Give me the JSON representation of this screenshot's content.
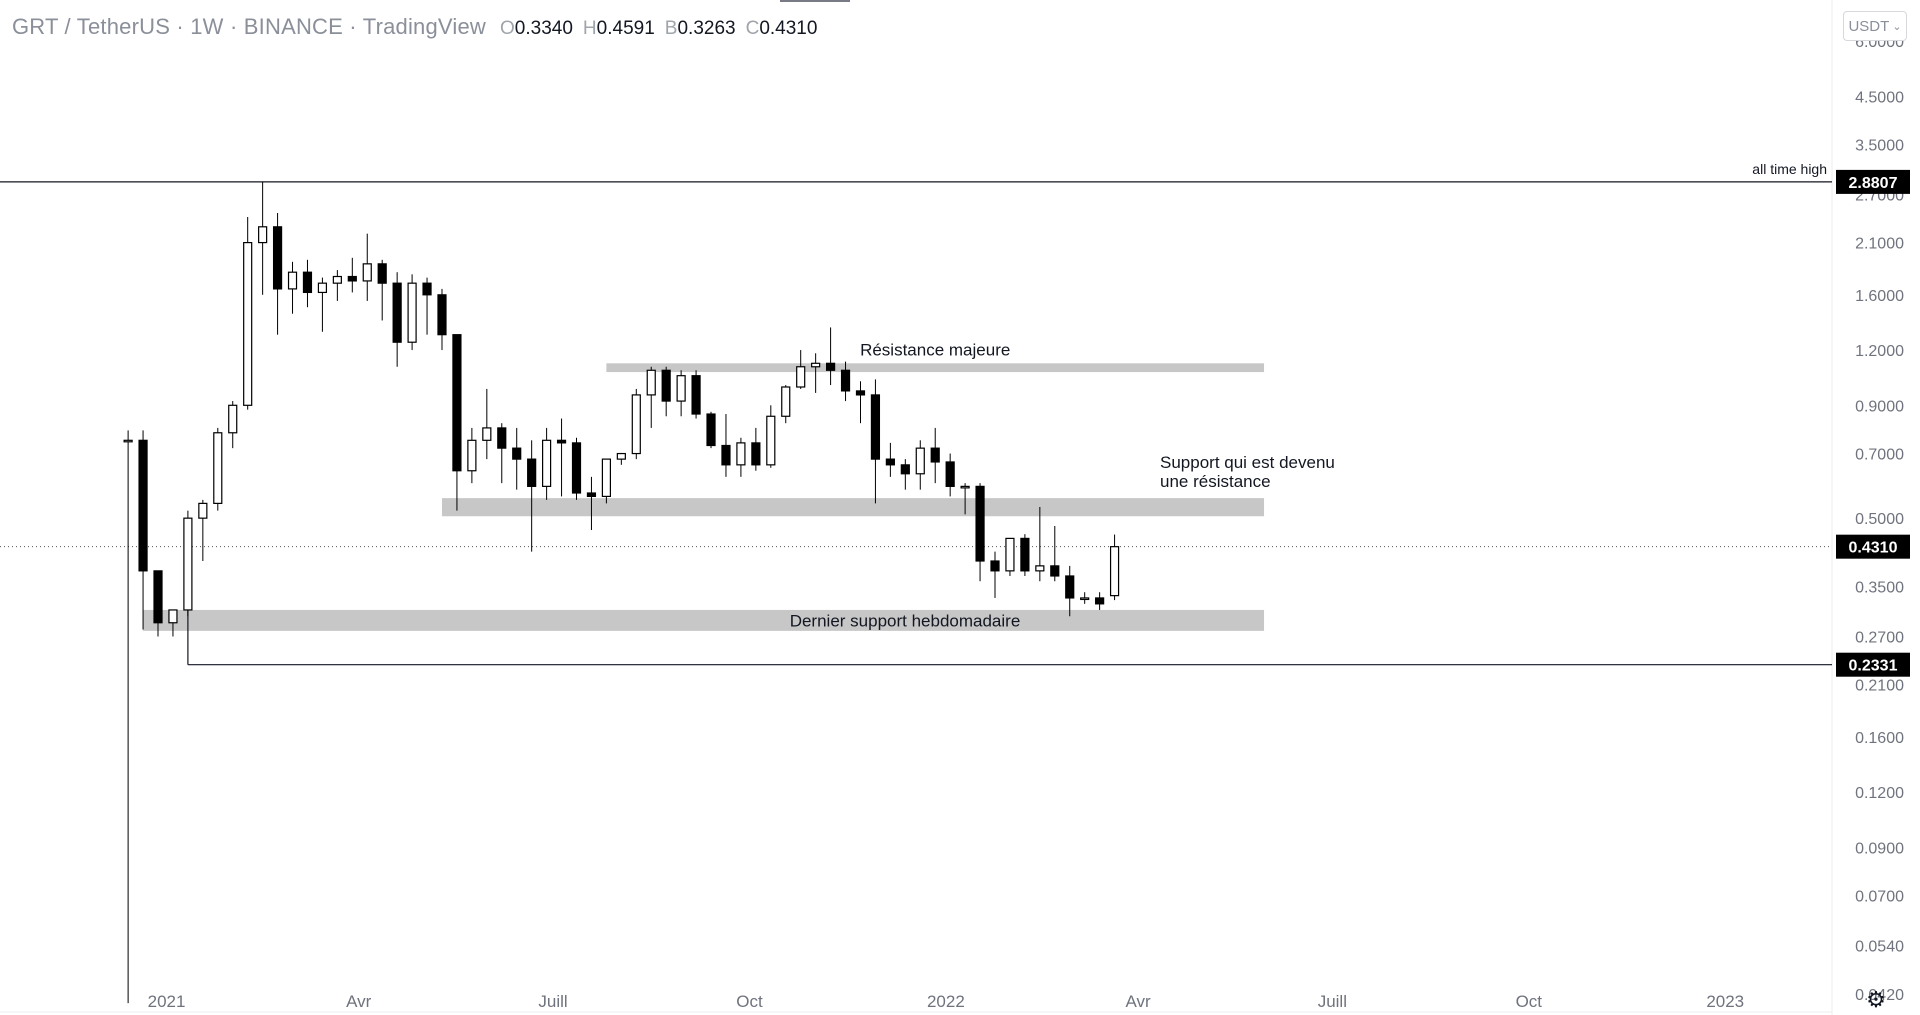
{
  "header": {
    "title": "GRT / TetherUS · 1W · BINANCE · TradingView",
    "ohlc": [
      {
        "key": "O",
        "value": "0.3340"
      },
      {
        "key": "H",
        "value": "0.4591"
      },
      {
        "key": "B",
        "value": "0.3263"
      },
      {
        "key": "C",
        "value": "0.4310"
      }
    ]
  },
  "toolbar": {
    "unit_label": "USDT"
  },
  "icons": {
    "unit_menu": "chevron-down-icon",
    "settings": "gear-icon"
  },
  "colors": {
    "candle": "#000000",
    "zone": "#bdbdbd",
    "price_tag_bg": "#000000",
    "price_tag_text": "#ffffff",
    "axis_text": "#6f737d"
  },
  "chart_data": {
    "type": "candlestick",
    "title": "GRT / TetherUS · 1W · BINANCE · TradingView",
    "y_scale": "log",
    "ylim": [
      0.038,
      7.2
    ],
    "y_ticks": [
      "6.0000",
      "4.5000",
      "3.5000",
      "2.7000",
      "2.1000",
      "1.6000",
      "1.2000",
      "0.9000",
      "0.7000",
      "0.5000",
      "0.3500",
      "0.2700",
      "0.2100",
      "0.1600",
      "0.1200",
      "0.0900",
      "0.0700",
      "0.0540",
      "0.0420"
    ],
    "y_tick_values": [
      6.0,
      4.5,
      3.5,
      2.7,
      2.1,
      1.6,
      1.2,
      0.9,
      0.7,
      0.5,
      0.35,
      0.27,
      0.21,
      0.16,
      0.12,
      0.09,
      0.07,
      0.054,
      0.042
    ],
    "x_range": [
      "2020-10-15",
      "2023-02-20"
    ],
    "x_ticks": [
      {
        "label": "2021",
        "date": "2021-01-01"
      },
      {
        "label": "Avr",
        "date": "2021-04-01"
      },
      {
        "label": "Juill",
        "date": "2021-07-01"
      },
      {
        "label": "Oct",
        "date": "2021-10-01"
      },
      {
        "label": "2022",
        "date": "2022-01-01"
      },
      {
        "label": "Avr",
        "date": "2022-04-01"
      },
      {
        "label": "Juill",
        "date": "2022-07-01"
      },
      {
        "label": "Oct",
        "date": "2022-10-01"
      },
      {
        "label": "2023",
        "date": "2023-01-01"
      }
    ],
    "first_week": "2020-12-14",
    "candles": [
      [
        0.75,
        0.79,
        0.04,
        0.75
      ],
      [
        0.75,
        0.79,
        0.28,
        0.38
      ],
      [
        0.38,
        0.38,
        0.27,
        0.29
      ],
      [
        0.29,
        0.31,
        0.27,
        0.31
      ],
      [
        0.31,
        0.52,
        0.3,
        0.5
      ],
      [
        0.5,
        0.55,
        0.4,
        0.54
      ],
      [
        0.54,
        0.8,
        0.52,
        0.78
      ],
      [
        0.78,
        0.92,
        0.72,
        0.9
      ],
      [
        0.9,
        2.4,
        0.88,
        2.1
      ],
      [
        2.1,
        2.88,
        1.6,
        2.28
      ],
      [
        2.28,
        2.45,
        1.3,
        1.65
      ],
      [
        1.65,
        1.9,
        1.45,
        1.8
      ],
      [
        1.8,
        1.92,
        1.5,
        1.62
      ],
      [
        1.62,
        1.75,
        1.32,
        1.7
      ],
      [
        1.7,
        1.82,
        1.55,
        1.76
      ],
      [
        1.76,
        1.94,
        1.62,
        1.72
      ],
      [
        1.72,
        2.2,
        1.55,
        1.88
      ],
      [
        1.88,
        1.92,
        1.4,
        1.7
      ],
      [
        1.7,
        1.8,
        1.1,
        1.25
      ],
      [
        1.25,
        1.78,
        1.2,
        1.7
      ],
      [
        1.7,
        1.75,
        1.3,
        1.6
      ],
      [
        1.6,
        1.65,
        1.2,
        1.3
      ],
      [
        1.3,
        1.3,
        0.52,
        0.64
      ],
      [
        0.64,
        0.8,
        0.6,
        0.75
      ],
      [
        0.75,
        0.98,
        0.68,
        0.8
      ],
      [
        0.8,
        0.82,
        0.6,
        0.72
      ],
      [
        0.72,
        0.8,
        0.58,
        0.68
      ],
      [
        0.68,
        0.75,
        0.42,
        0.59
      ],
      [
        0.59,
        0.8,
        0.55,
        0.75
      ],
      [
        0.75,
        0.84,
        0.56,
        0.74
      ],
      [
        0.74,
        0.76,
        0.55,
        0.57
      ],
      [
        0.57,
        0.62,
        0.47,
        0.56
      ],
      [
        0.56,
        0.68,
        0.54,
        0.68
      ],
      [
        0.68,
        0.7,
        0.66,
        0.7
      ],
      [
        0.7,
        0.98,
        0.68,
        0.95
      ],
      [
        0.95,
        1.1,
        0.8,
        1.08
      ],
      [
        1.08,
        1.1,
        0.85,
        0.92
      ],
      [
        0.92,
        1.08,
        0.85,
        1.05
      ],
      [
        1.05,
        1.08,
        0.84,
        0.86
      ],
      [
        0.86,
        0.87,
        0.72,
        0.73
      ],
      [
        0.73,
        0.86,
        0.62,
        0.66
      ],
      [
        0.66,
        0.76,
        0.62,
        0.74
      ],
      [
        0.74,
        0.8,
        0.64,
        0.66
      ],
      [
        0.66,
        0.9,
        0.65,
        0.85
      ],
      [
        0.85,
        1.0,
        0.82,
        0.99
      ],
      [
        0.99,
        1.2,
        0.98,
        1.1
      ],
      [
        1.1,
        1.18,
        0.96,
        1.12
      ],
      [
        1.12,
        1.35,
        1.0,
        1.08
      ],
      [
        1.08,
        1.13,
        0.92,
        0.97
      ],
      [
        0.97,
        1.02,
        0.82,
        0.95
      ],
      [
        0.95,
        1.03,
        0.54,
        0.68
      ],
      [
        0.68,
        0.74,
        0.62,
        0.66
      ],
      [
        0.66,
        0.68,
        0.58,
        0.63
      ],
      [
        0.63,
        0.75,
        0.58,
        0.72
      ],
      [
        0.72,
        0.8,
        0.6,
        0.67
      ],
      [
        0.67,
        0.7,
        0.56,
        0.59
      ],
      [
        0.59,
        0.6,
        0.51,
        0.59
      ],
      [
        0.59,
        0.6,
        0.36,
        0.4
      ],
      [
        0.4,
        0.42,
        0.33,
        0.38
      ],
      [
        0.38,
        0.45,
        0.37,
        0.45
      ],
      [
        0.45,
        0.46,
        0.37,
        0.38
      ],
      [
        0.38,
        0.53,
        0.36,
        0.39
      ],
      [
        0.39,
        0.48,
        0.36,
        0.37
      ],
      [
        0.37,
        0.39,
        0.3,
        0.33
      ],
      [
        0.33,
        0.34,
        0.32,
        0.33
      ],
      [
        0.33,
        0.34,
        0.31,
        0.32
      ],
      [
        0.334,
        0.4591,
        0.3263,
        0.431
      ]
    ],
    "zones": [
      {
        "label": "Résistance majeure",
        "from": "2021-07-26",
        "to": "2022-05-30",
        "low": 1.07,
        "high": 1.12
      },
      {
        "label": "Support qui est devenu une résistance",
        "from": "2021-05-10",
        "to": "2022-05-30",
        "low": 0.505,
        "high": 0.555
      },
      {
        "label": "Dernier support hebdomadaire",
        "from": "2020-12-21",
        "to": "2022-05-30",
        "low": 0.278,
        "high": 0.31
      }
    ],
    "levels": [
      {
        "value": 2.8807,
        "tag": "2.8807",
        "label": "all time high",
        "from": "2020-10-15"
      },
      {
        "value": 0.2331,
        "tag": "0.2331",
        "label": "",
        "from": "2021-01-11"
      }
    ],
    "last_price": {
      "value": 0.431,
      "tag": "0.4310"
    }
  }
}
